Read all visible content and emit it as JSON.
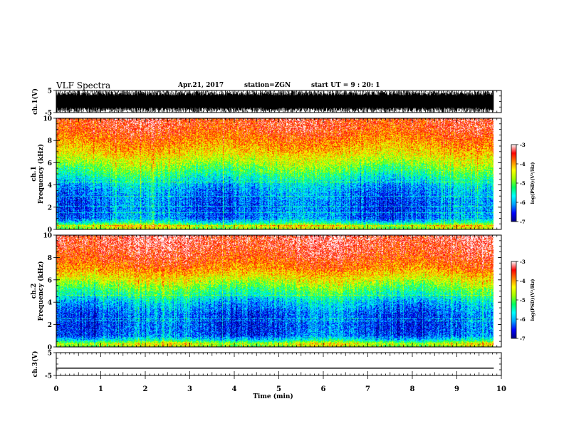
{
  "header": {
    "title": "VLF Spectra",
    "date": "Apr.21, 2017",
    "station": "station=ZGN",
    "start": "start UT =  9 : 20: 1"
  },
  "chart_data": [
    {
      "type": "line",
      "panel": "ch1-waveform",
      "ylabel": "ch.1(V)",
      "ylim": [
        -5,
        5
      ],
      "yticks": [
        "5",
        "-5"
      ],
      "xlim": [
        0,
        10
      ],
      "trace_color": "#000000",
      "amplitude_range_v": [
        -5,
        5
      ],
      "data_extent_min": 9.83
    },
    {
      "type": "heatmap",
      "panel": "ch1-spectrogram",
      "ylabel": "ch.1\nFrequency (kHz)",
      "ylim": [
        0,
        10
      ],
      "yticks": [
        "0",
        "2",
        "4",
        "6",
        "8",
        "10"
      ],
      "xlim": [
        0,
        10
      ],
      "data_extent_min": 9.83,
      "colorbar": {
        "label": "log(PSD)(V²/Hz)",
        "range": [
          -7,
          -3
        ],
        "ticks": [
          "-3",
          "-4",
          "-5",
          "-6",
          "-7"
        ],
        "colormap": [
          "#000080",
          "#0000ff",
          "#00a0ff",
          "#00ffff",
          "#00ff60",
          "#a0ff00",
          "#ffff00",
          "#ff8000",
          "#ff0000",
          "#ffffff"
        ]
      },
      "profile_khz_logpsd": [
        [
          0,
          -4.8
        ],
        [
          0.3,
          -4.5
        ],
        [
          0.6,
          -5.5
        ],
        [
          1,
          -6.2
        ],
        [
          2,
          -6.3
        ],
        [
          3,
          -6.2
        ],
        [
          4,
          -5.9
        ],
        [
          5,
          -5.3
        ],
        [
          6,
          -4.7
        ],
        [
          7,
          -4.2
        ],
        [
          8,
          -3.9
        ],
        [
          9,
          -3.6
        ],
        [
          10,
          -3.5
        ]
      ]
    },
    {
      "type": "heatmap",
      "panel": "ch2-spectrogram",
      "ylabel": "ch.2\nFrequency (kHz)",
      "ylim": [
        0,
        10
      ],
      "yticks": [
        "0",
        "2",
        "4",
        "6",
        "8",
        "10"
      ],
      "xlim": [
        0,
        10
      ],
      "data_extent_min": 9.83,
      "colorbar": {
        "label": "log(PSD)(V²/Hz)",
        "range": [
          -7,
          -3
        ],
        "ticks": [
          "-3",
          "-4",
          "-5",
          "-6",
          "-7"
        ],
        "colormap": [
          "#000080",
          "#0000ff",
          "#00a0ff",
          "#00ffff",
          "#00ff60",
          "#a0ff00",
          "#ffff00",
          "#ff8000",
          "#ff0000",
          "#ffffff"
        ]
      },
      "profile_khz_logpsd": [
        [
          0,
          -4.8
        ],
        [
          0.3,
          -4.5
        ],
        [
          0.6,
          -5.6
        ],
        [
          1,
          -6.3
        ],
        [
          2,
          -6.4
        ],
        [
          3,
          -6.3
        ],
        [
          4,
          -5.9
        ],
        [
          5,
          -5.2
        ],
        [
          6,
          -4.5
        ],
        [
          7,
          -3.9
        ],
        [
          8,
          -3.6
        ],
        [
          9,
          -3.4
        ],
        [
          10,
          -3.3
        ]
      ]
    },
    {
      "type": "line",
      "panel": "ch3-waveform",
      "ylabel": "ch.3(V)",
      "ylim": [
        -5,
        5
      ],
      "yticks": [
        "5",
        "-5"
      ],
      "xlim": [
        0,
        10
      ],
      "trace_color": "#000000",
      "constant_value_v": -1.8,
      "data_extent_min": 9.83,
      "xlabel": "Time (min)",
      "xticks": [
        "0",
        "1",
        "2",
        "3",
        "4",
        "5",
        "6",
        "7",
        "8",
        "9",
        "10"
      ]
    }
  ]
}
